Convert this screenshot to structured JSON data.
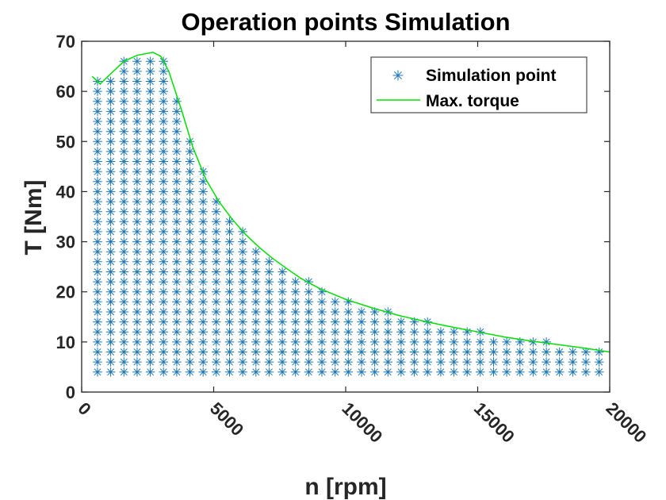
{
  "chart_data": {
    "type": "scatter",
    "title": "Operation points Simulation",
    "xlabel": "n [rpm]",
    "ylabel": "T [Nm]",
    "xlim": [
      0,
      20000
    ],
    "ylim": [
      0,
      70
    ],
    "xticks": [
      0,
      5000,
      10000,
      15000,
      20000
    ],
    "yticks": [
      0,
      10,
      20,
      30,
      40,
      50,
      60,
      70
    ],
    "grid": false,
    "legend_position": "top-right",
    "series": [
      {
        "name": "Simulation point",
        "kind": "points",
        "marker": "asterisk",
        "color": "#1f77b4",
        "speed_grid": {
          "start": 600,
          "step": 500,
          "stop": 20000
        },
        "torque_grid": {
          "start": 4,
          "step": 2,
          "stop": 66
        }
      },
      {
        "name": "Max. torque",
        "kind": "line",
        "color": "#00e000",
        "x": [
          400,
          700,
          1100,
          1600,
          2100,
          2700,
          3000,
          3300,
          3800,
          4200,
          4700,
          5200,
          5700,
          6200,
          6700,
          7200,
          7700,
          8300,
          9000,
          10000,
          11000,
          12000,
          13000,
          14000,
          15000,
          16000,
          17000,
          18000,
          19000,
          20000
        ],
        "y": [
          63,
          61.5,
          63.5,
          66,
          67.2,
          67.8,
          67,
          64,
          56,
          49,
          42.5,
          38,
          34.5,
          31.5,
          29,
          26.8,
          24.9,
          22.7,
          20.7,
          18.5,
          16.8,
          15.3,
          14.1,
          13,
          12,
          11,
          10.2,
          9.5,
          8.8,
          8
        ]
      }
    ]
  }
}
